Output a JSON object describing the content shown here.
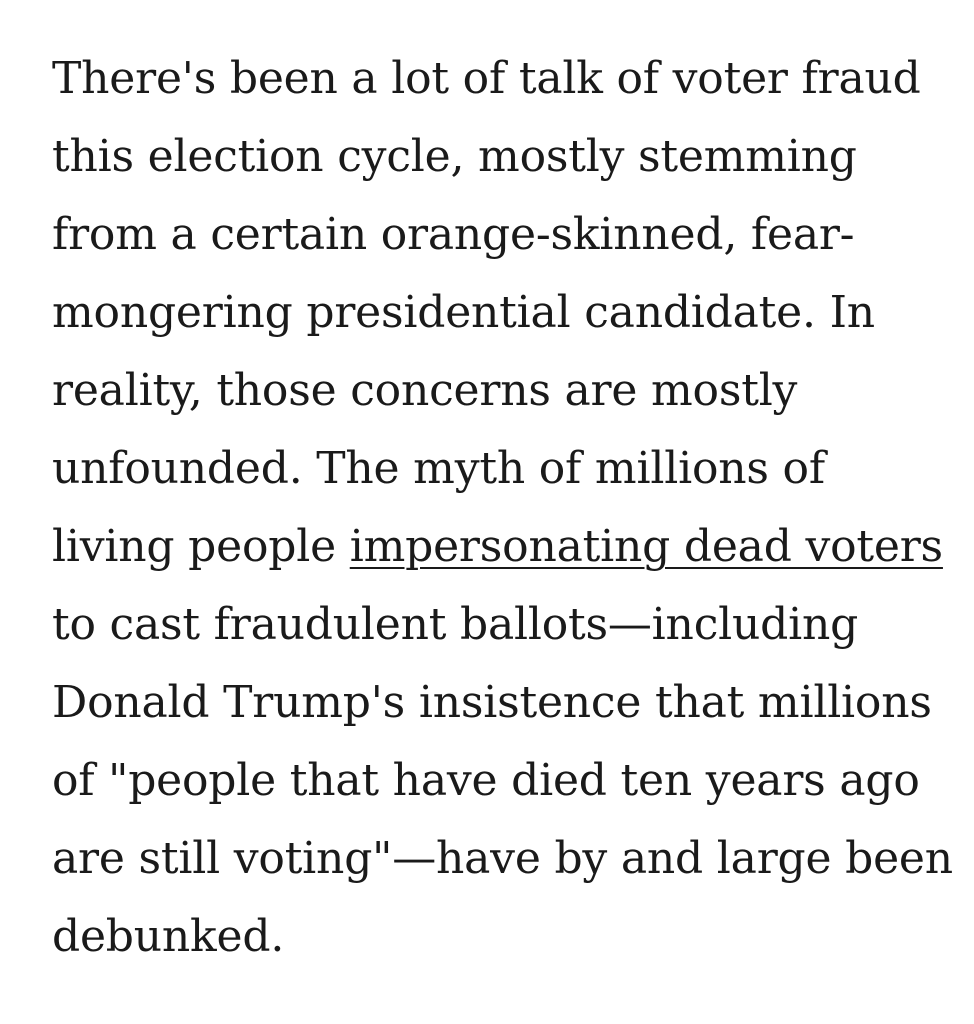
{
  "article": {
    "lines": [
      "There's been a lot of talk of voter fraud",
      "this election cycle, mostly stemming",
      "from a certain orange-skinned, fear-",
      "mongering presidential candidate. In",
      "reality, those concerns are mostly",
      "unfounded. The myth of millions of",
      "living people ",
      "to cast fraudulent ballots—including",
      "Donald Trump's insistence that millions",
      "of \"people that have died ten years ago",
      "are still voting\"—have by and large been",
      "debunked."
    ],
    "link_text": "impersonating dead voters"
  }
}
